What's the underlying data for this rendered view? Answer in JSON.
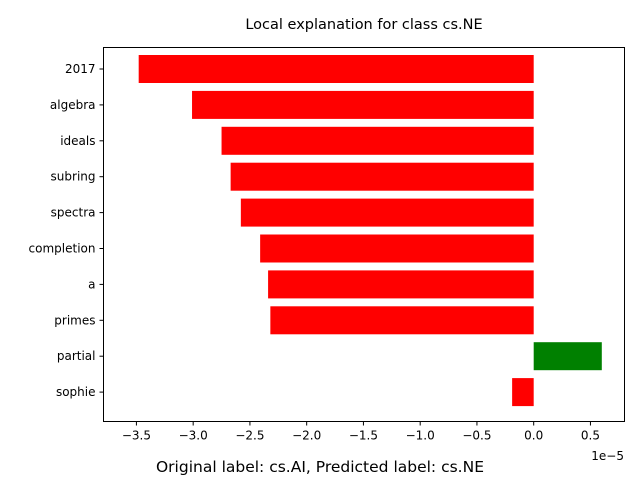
{
  "chart_data": {
    "type": "bar",
    "orientation": "horizontal",
    "title": "Local explanation for class cs.NE",
    "xlabel": "Original label: cs.AI, Predicted label: cs.NE",
    "ylabel": "",
    "x_scale_offset_label": "1e−5",
    "x_scale_factor": 1e-05,
    "categories": [
      "2017",
      "algebra",
      "ideals",
      "subring",
      "spectra",
      "completion",
      "a",
      "primes",
      "partial",
      "sophie"
    ],
    "values": [
      -3.48e-05,
      -3.01e-05,
      -2.75e-05,
      -2.67e-05,
      -2.58e-05,
      -2.41e-05,
      -2.34e-05,
      -2.32e-05,
      6e-06,
      -1.9e-06
    ],
    "xlim": [
      -3.79e-05,
      8e-06
    ],
    "xticks": [
      -3.5,
      -3.0,
      -2.5,
      -2.0,
      -1.5,
      -1.0,
      -0.5,
      0.0,
      0.5
    ],
    "xtick_labels": [
      "−3.5",
      "−3.0",
      "−2.5",
      "−2.0",
      "−1.5",
      "−1.0",
      "−0.5",
      "0.0",
      "0.5"
    ],
    "colors": {
      "negative": "#ff0000",
      "positive": "#008000"
    },
    "grid": false,
    "legend": "none"
  }
}
